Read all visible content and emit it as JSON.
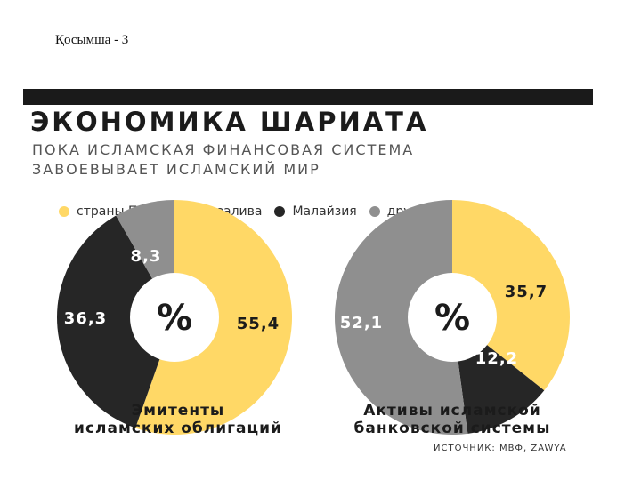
{
  "caption": "Қосымша - 3",
  "title": "ЭКОНОМИКА ШАРИАТА",
  "subtitle": "ПОКА ИСЛАМСКАЯ ФИНАНСОВАЯ СИСТЕМА\nЗАВОЕВЫВАЕТ ИСЛАМСКИЙ МИР",
  "legend": [
    {
      "label": "страны Персидского залива",
      "color": "#FFD866"
    },
    {
      "label": "Малайзия",
      "color": "#262626"
    },
    {
      "label": "другие",
      "color": "#8F8F8F"
    }
  ],
  "center_symbol": "%",
  "source": "ИСТОЧНИК: МВФ, ZAWYA",
  "chart_data": [
    {
      "type": "pie",
      "title": "Эмитенты\nисламских облигаций",
      "categories": [
        "страны Персидского залива",
        "Малайзия",
        "другие"
      ],
      "values": [
        55.4,
        36.3,
        8.3
      ],
      "value_labels": [
        "55,4",
        "36,3",
        "8,3"
      ],
      "colors": [
        "#FFD866",
        "#262626",
        "#8F8F8F"
      ]
    },
    {
      "type": "pie",
      "title": "Активы исламской\nбанковской системы",
      "categories": [
        "страны Персидского залива",
        "Малайзия",
        "другие"
      ],
      "values": [
        35.7,
        12.2,
        52.1
      ],
      "value_labels": [
        "35,7",
        "12,2",
        "52,1"
      ],
      "colors": [
        "#FFD866",
        "#262626",
        "#8F8F8F"
      ]
    }
  ]
}
